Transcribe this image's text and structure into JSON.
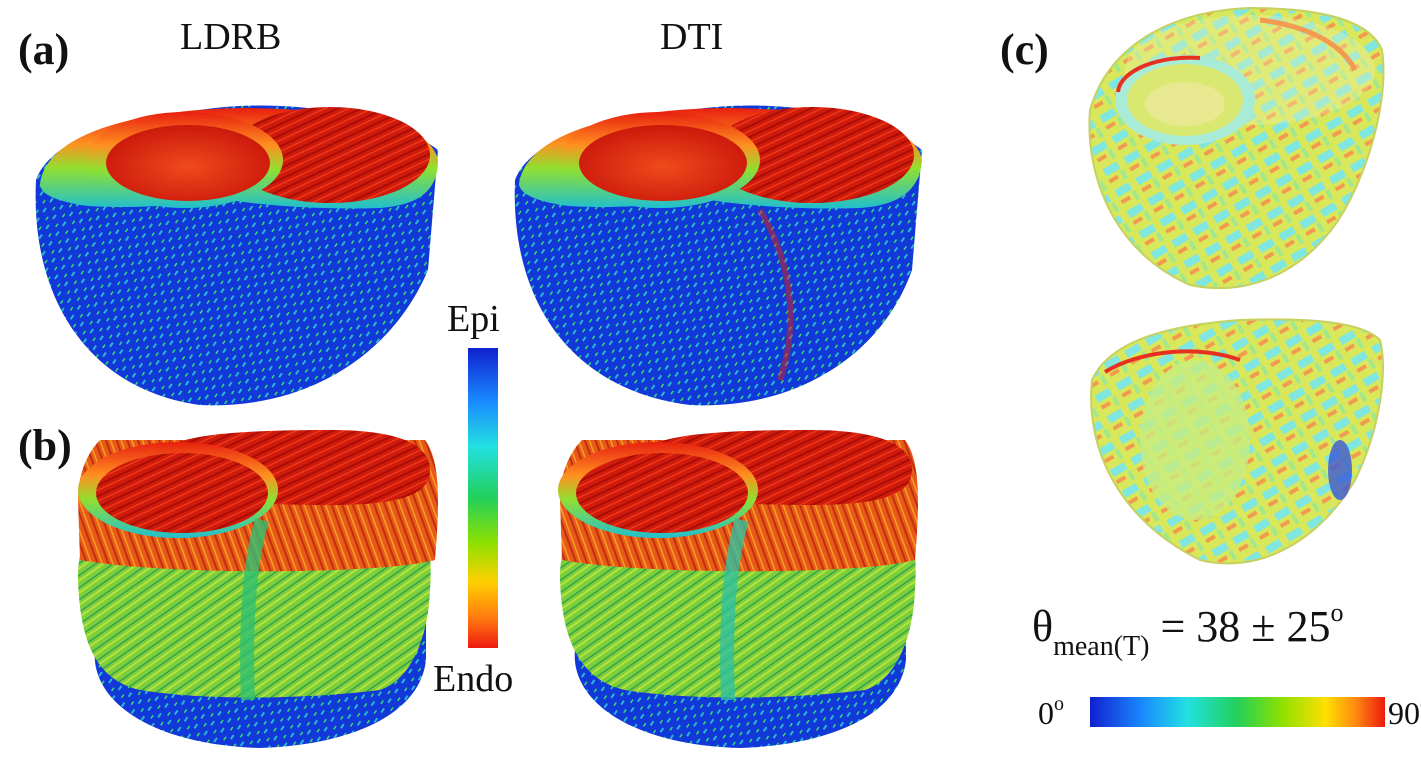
{
  "panels": {
    "a": {
      "label": "(a)",
      "left_title": "LDRB",
      "right_title": "DTI"
    },
    "b": {
      "label": "(b)"
    },
    "c": {
      "label": "(c)"
    }
  },
  "colorbar_vertical": {
    "top_label": "Epi",
    "bottom_label": "Endo",
    "colors_top_to_bottom": [
      "#1020d0",
      "#1a8cff",
      "#22e0e0",
      "#22d05a",
      "#8ee000",
      "#ffd000",
      "#ff7a10",
      "#ee1a10"
    ]
  },
  "equation": {
    "symbol": "θ",
    "subscript": "mean",
    "argument": "(T)",
    "value": "= 38 ± 25",
    "degree": "o"
  },
  "colorbar_horizontal": {
    "min_value": "0",
    "max_value": "90",
    "degree": "o",
    "colors_left_to_right": [
      "#1020d0",
      "#1a8cff",
      "#22e0e0",
      "#22d05a",
      "#8ee000",
      "#ffe000",
      "#ff8a10",
      "#ee1a10"
    ]
  },
  "colors": {
    "epi_blue": "#1238d8",
    "endo_red": "#d81a0c",
    "transition_green": "#3ad040",
    "mesh_yellow": "#e8e040",
    "mesh_cyan": "#7fe6e0"
  }
}
